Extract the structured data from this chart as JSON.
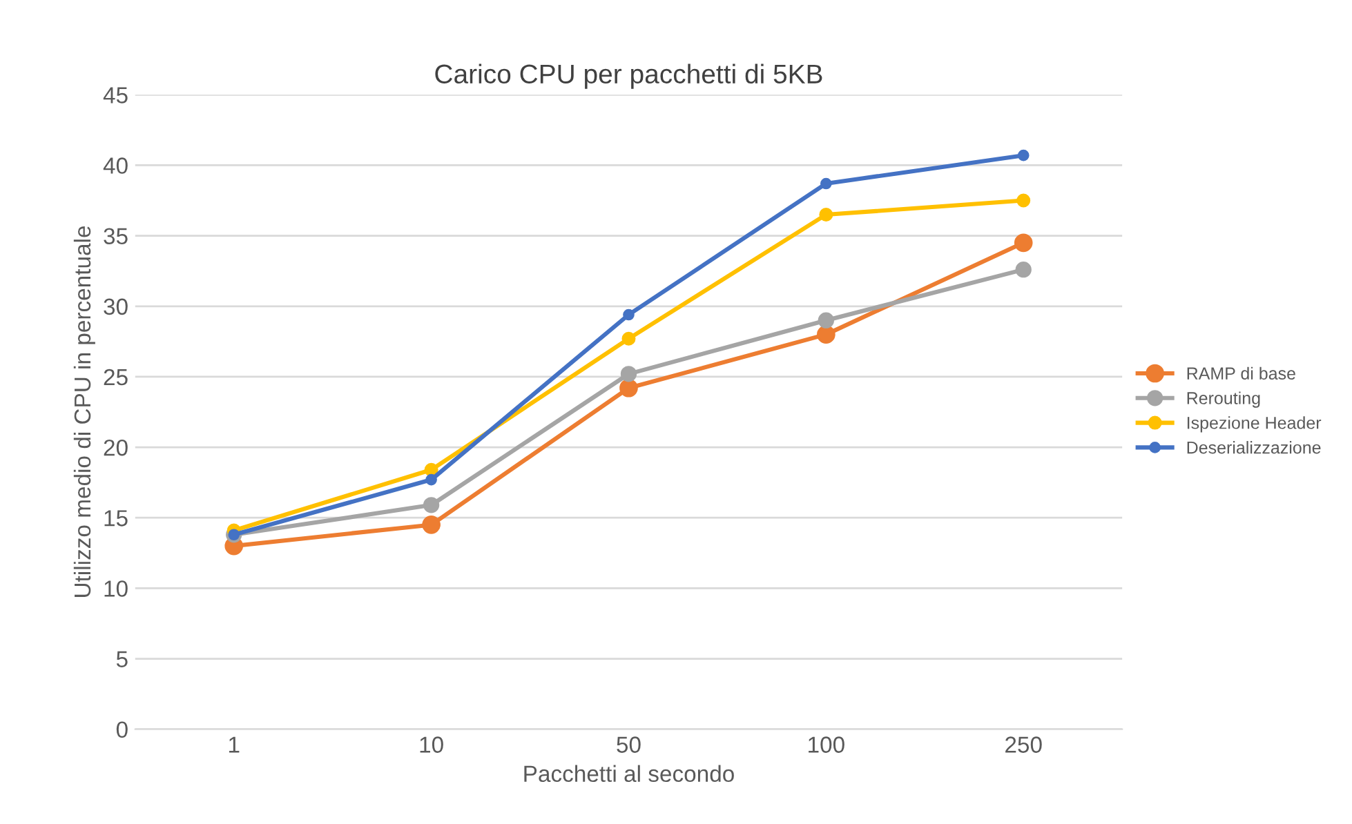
{
  "chart_data": {
    "type": "line",
    "title": "Carico CPU per pacchetti di 5KB",
    "xlabel": "Pacchetti al secondo",
    "ylabel": "Utilizzo medio di CPU in percentuale",
    "categories": [
      "1",
      "10",
      "50",
      "100",
      "250"
    ],
    "series": [
      {
        "name": "RAMP di base",
        "color": "#ed7d31",
        "values": [
          13,
          14.5,
          24.2,
          28,
          34.5
        ]
      },
      {
        "name": "Rerouting",
        "color": "#a5a5a5",
        "values": [
          13.8,
          15.9,
          25.2,
          29,
          32.6
        ]
      },
      {
        "name": "Ispezione Header",
        "color": "#ffc000",
        "values": [
          14.1,
          18.4,
          27.7,
          36.5,
          37.5
        ]
      },
      {
        "name": "Deserializzazione",
        "color": "#4472c4",
        "values": [
          13.8,
          17.7,
          29.4,
          38.7,
          40.7
        ]
      }
    ],
    "ylim": [
      0,
      45
    ],
    "yticks": [
      0,
      5,
      10,
      15,
      20,
      25,
      30,
      35,
      40,
      45
    ],
    "grid": "y",
    "legend": "right",
    "marker": "circle"
  }
}
